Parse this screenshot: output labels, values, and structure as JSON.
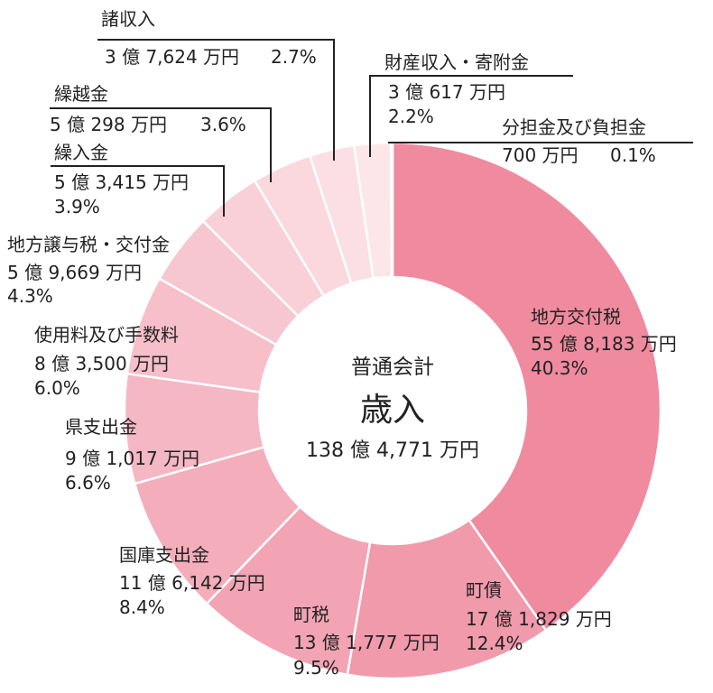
{
  "chart_data": {
    "type": "pie",
    "center": {
      "line1": "普通会計",
      "line2": "歳入",
      "line3": "138 億 4,771 万円"
    },
    "slices": [
      {
        "name": "地方交付税",
        "amount": "55 億 8,183 万円",
        "percent": 40.3,
        "percent_label": "40.3%",
        "color": "#ef8a9f"
      },
      {
        "name": "町債",
        "amount": "17 億 1,829 万円",
        "percent": 12.4,
        "percent_label": "12.4%",
        "color": "#f19aac"
      },
      {
        "name": "町税",
        "amount": "13 億 1,777 万円",
        "percent": 9.5,
        "percent_label": "9.5%",
        "color": "#f2a4b4"
      },
      {
        "name": "国庫支出金",
        "amount": "11 億 6,142 万円",
        "percent": 8.4,
        "percent_label": "8.4%",
        "color": "#f3adbb"
      },
      {
        "name": "県支出金",
        "amount": "9 億 1,017 万円",
        "percent": 6.6,
        "percent_label": "6.6%",
        "color": "#f5b7c3"
      },
      {
        "name": "使用料及び手数料",
        "amount": "8 億 3,500 万円",
        "percent": 6.0,
        "percent_label": "6.0%",
        "color": "#f6bfca"
      },
      {
        "name": "地方譲与税・交付金",
        "amount": "5 億 9,669 万円",
        "percent": 4.3,
        "percent_label": "4.3%",
        "color": "#f7c7d1"
      },
      {
        "name": "繰入金",
        "amount": "5 億 3,415 万円",
        "percent": 3.9,
        "percent_label": "3.9%",
        "color": "#f9d0d8"
      },
      {
        "name": "繰越金",
        "amount": "5 億 298 万円",
        "percent": 3.6,
        "percent_label": "3.6%",
        "color": "#fad8de"
      },
      {
        "name": "諸収入",
        "amount": "3 億 7,624 万円",
        "percent": 2.7,
        "percent_label": "2.7%",
        "color": "#fbdfe4"
      },
      {
        "name": "財産収入・寄附金",
        "amount": "3 億 617 万円",
        "percent": 2.2,
        "percent_label": "2.2%",
        "color": "#fce6ea"
      },
      {
        "name": "分担金及び負担金",
        "amount": "700 万円",
        "percent": 0.1,
        "percent_label": "0.1%",
        "color": "#fdeef1"
      }
    ]
  }
}
